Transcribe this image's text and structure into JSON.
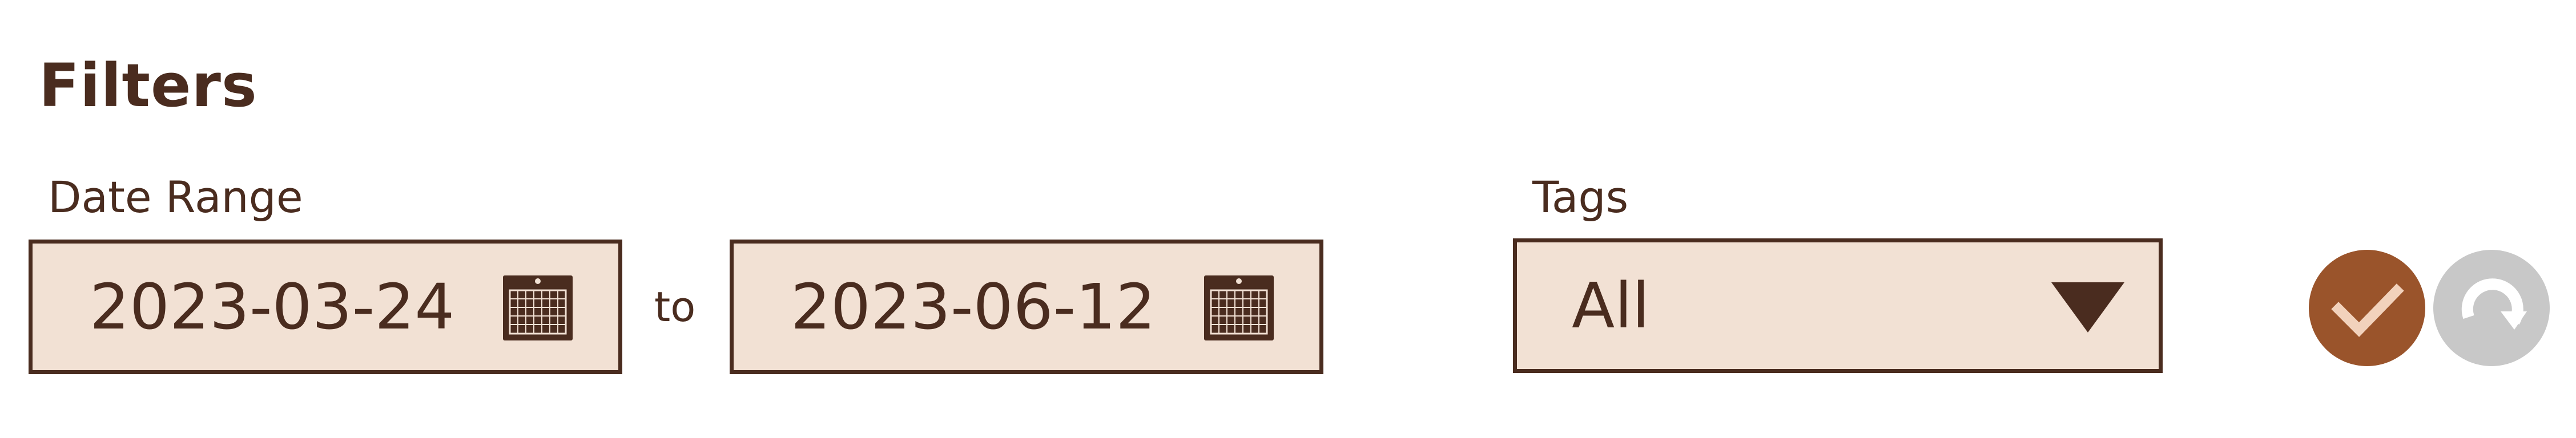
{
  "filters": {
    "title": "Filters",
    "date_range": {
      "label": "Date Range",
      "start": "2023-03-24",
      "separator": "to",
      "end": "2023-06-12",
      "start_icon": "calendar-icon",
      "end_icon": "calendar-icon"
    },
    "tags": {
      "label": "Tags",
      "selected": "All",
      "icon": "dropdown-arrow-icon"
    },
    "actions": {
      "apply_icon": "checkmark-icon",
      "reset_icon": "refresh-icon"
    }
  },
  "colors": {
    "text": "#4a2c1f",
    "field_bg": "#f2e1d4",
    "apply_bg": "#9a542b",
    "reset_bg": "#c8c8c8"
  }
}
